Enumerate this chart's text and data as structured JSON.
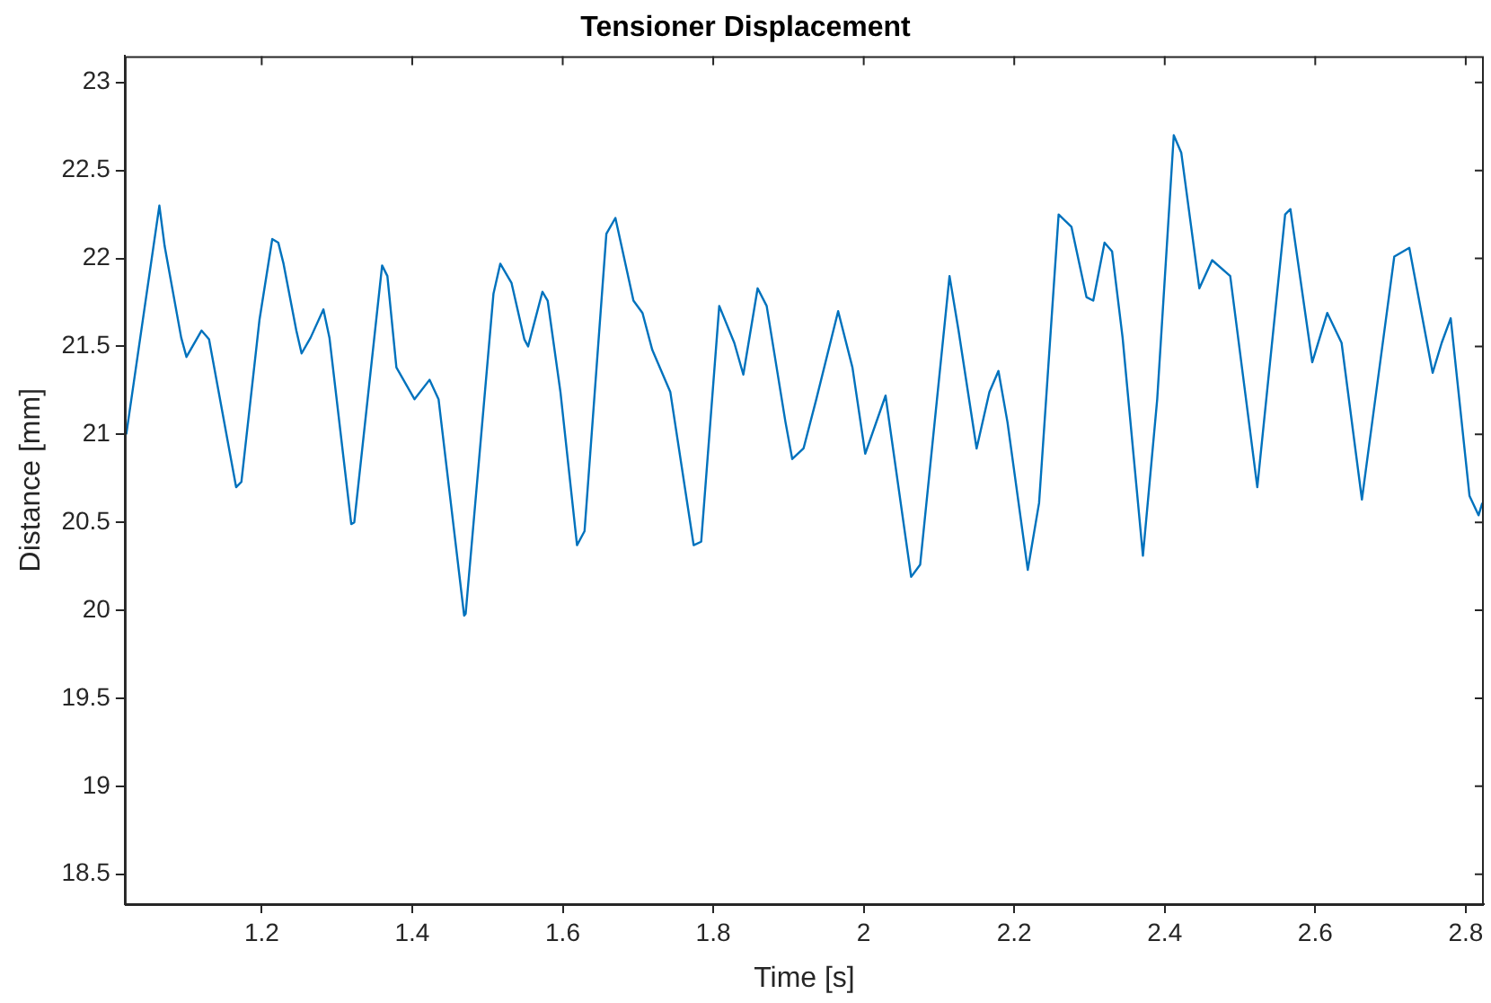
{
  "chart_data": {
    "type": "line",
    "title": "Tensioner Displacement",
    "xlabel": "Time [s]",
    "ylabel": "Distance [mm]",
    "xlim": [
      1.018,
      2.824
    ],
    "xticks": [
      1.2,
      1.4,
      1.6,
      1.8,
      2,
      2.2,
      2.4,
      2.6,
      2.8
    ],
    "ylim": [
      18.33,
      23.15
    ],
    "yticks": [
      18.5,
      19,
      19.5,
      20,
      20.5,
      21,
      21.5,
      22,
      22.5,
      23
    ],
    "grid": false,
    "legend": false,
    "marker": "none",
    "line_style": "solid",
    "series": [
      {
        "color": "#0072bd",
        "x": [
          1.02,
          1.064,
          1.071,
          1.093,
          1.1,
          1.12,
          1.13,
          1.166,
          1.173,
          1.197,
          1.214,
          1.222,
          1.229,
          1.246,
          1.253,
          1.265,
          1.282,
          1.29,
          1.319,
          1.323,
          1.36,
          1.367,
          1.379,
          1.403,
          1.423,
          1.435,
          1.469,
          1.471,
          1.508,
          1.517,
          1.532,
          1.549,
          1.554,
          1.573,
          1.58,
          1.597,
          1.619,
          1.629,
          1.658,
          1.67,
          1.694,
          1.706,
          1.719,
          1.743,
          1.774,
          1.784,
          1.808,
          1.828,
          1.84,
          1.859,
          1.871,
          1.896,
          1.905,
          1.92,
          1.937,
          1.966,
          1.985,
          2.002,
          2.029,
          2.063,
          2.075,
          2.114,
          2.126,
          2.15,
          2.167,
          2.179,
          2.191,
          2.218,
          2.233,
          2.259,
          2.276,
          2.296,
          2.305,
          2.32,
          2.33,
          2.344,
          2.371,
          2.39,
          2.412,
          2.422,
          2.446,
          2.463,
          2.487,
          2.523,
          2.56,
          2.567,
          2.596,
          2.616,
          2.635,
          2.662,
          2.705,
          2.725,
          2.756,
          2.768,
          2.78,
          2.805,
          2.817,
          2.822
        ],
        "values": [
          21.0,
          22.3,
          22.07,
          21.55,
          21.44,
          21.59,
          21.54,
          20.7,
          20.73,
          21.65,
          22.11,
          22.09,
          21.97,
          21.59,
          21.46,
          21.55,
          21.71,
          21.55,
          20.49,
          20.5,
          21.96,
          21.9,
          21.38,
          21.2,
          21.31,
          21.2,
          19.97,
          19.98,
          21.8,
          21.97,
          21.86,
          21.54,
          21.5,
          21.81,
          21.76,
          21.24,
          20.37,
          20.45,
          22.14,
          22.23,
          21.76,
          21.69,
          21.48,
          21.24,
          20.37,
          20.39,
          21.73,
          21.52,
          21.34,
          21.83,
          21.73,
          21.07,
          20.86,
          20.92,
          21.2,
          21.7,
          21.38,
          20.89,
          21.22,
          20.19,
          20.26,
          21.9,
          21.59,
          20.92,
          21.24,
          21.36,
          21.07,
          20.23,
          20.61,
          22.25,
          22.18,
          21.78,
          21.76,
          22.09,
          22.04,
          21.55,
          20.31,
          21.2,
          22.7,
          22.6,
          21.83,
          21.99,
          21.9,
          20.7,
          22.25,
          22.28,
          21.41,
          21.69,
          21.52,
          20.63,
          22.01,
          22.06,
          21.35,
          21.52,
          21.66,
          20.65,
          20.54,
          20.61
        ]
      }
    ]
  }
}
